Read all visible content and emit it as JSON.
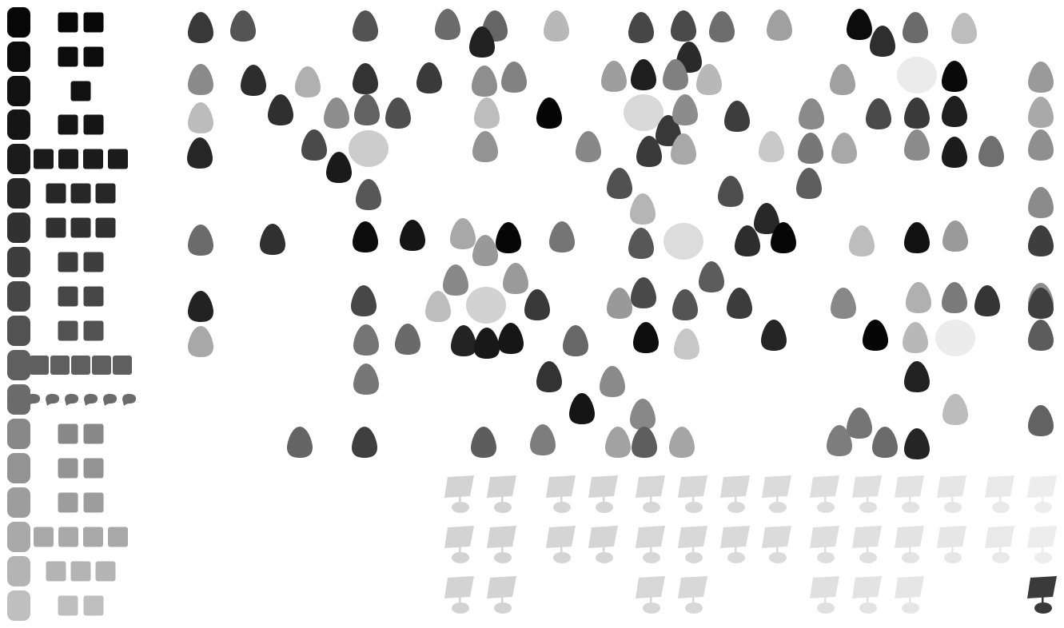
{
  "colors": {
    "background": "#ffffff",
    "panel_inactive": "#d3d3d3"
  },
  "row_controls": [
    {
      "level_color": "#070707",
      "pieces": 2,
      "piece_shape": "square"
    },
    {
      "level_color": "#0c0c0c",
      "pieces": 2,
      "piece_shape": "square"
    },
    {
      "level_color": "#111111",
      "pieces": 1,
      "piece_shape": "square"
    },
    {
      "level_color": "#151515",
      "pieces": 2,
      "piece_shape": "square"
    },
    {
      "level_color": "#1b1b1b",
      "pieces": 4,
      "piece_shape": "square"
    },
    {
      "level_color": "#272727",
      "pieces": 3,
      "piece_shape": "square"
    },
    {
      "level_color": "#313131",
      "pieces": 3,
      "piece_shape": "square"
    },
    {
      "level_color": "#3e3e3e",
      "pieces": 2,
      "piece_shape": "square"
    },
    {
      "level_color": "#474747",
      "pieces": 2,
      "piece_shape": "square"
    },
    {
      "level_color": "#525252",
      "pieces": 2,
      "piece_shape": "square"
    },
    {
      "level_color": "#5f5f5f",
      "pieces": 5,
      "piece_shape": "square"
    },
    {
      "level_color": "#6b6b6b",
      "pieces": 6,
      "piece_shape": "leaf"
    },
    {
      "level_color": "#888888",
      "pieces": 2,
      "piece_shape": "square"
    },
    {
      "level_color": "#939393",
      "pieces": 2,
      "piece_shape": "square"
    },
    {
      "level_color": "#9d9d9d",
      "pieces": 2,
      "piece_shape": "square"
    },
    {
      "level_color": "#a9a9a9",
      "pieces": 4,
      "piece_shape": "square"
    },
    {
      "level_color": "#b4b4b4",
      "pieces": 3,
      "piece_shape": "square"
    },
    {
      "level_color": "#bfbfbf",
      "pieces": 2,
      "piece_shape": "square"
    }
  ],
  "eggs": [
    {
      "c": "#383838"
    },
    {
      "c": "#545454"
    },
    {
      "c": "#535353"
    },
    {
      "c": "#6b6b6b"
    },
    {
      "c": "#666666"
    },
    {
      "c": "#b8b8b8"
    },
    {
      "c": "#464646"
    },
    {
      "c": "#4a4a4a"
    },
    {
      "c": "#6d6d6d"
    },
    {
      "c": "#a0a0a0"
    },
    {
      "c": "#0c0c0c"
    },
    {
      "c": "#6b6b6b"
    },
    {
      "c": "#bdbdbd"
    },
    {
      "c": "#212121"
    },
    {
      "c": "#2e2e2e"
    },
    {
      "c": "#2a2a2a"
    },
    {
      "c": "#8a8a8a"
    },
    {
      "c": "#2d2d2d"
    },
    {
      "c": "#b0b0b0"
    },
    {
      "c": "#333333"
    },
    {
      "c": "#3a3a3a"
    },
    {
      "c": "#8e8e8e"
    },
    {
      "c": "#828282"
    },
    {
      "c": "#9e9e9e"
    },
    {
      "c": "#1e1e1e"
    },
    {
      "c": "#808080"
    },
    {
      "c": "#b8b8b8"
    },
    {
      "c": "#a0a0a0"
    },
    {
      "c": "#090909"
    },
    {
      "c": "#9a9a9a"
    },
    {
      "c": "#bcbcbc"
    },
    {
      "c": "#2f2f2f"
    },
    {
      "c": "#8d8d8d"
    },
    {
      "c": "#626262"
    },
    {
      "c": "#4f4f4f"
    },
    {
      "c": "#bdbdbd"
    },
    {
      "c": "#050505"
    },
    {
      "c": "#383838"
    },
    {
      "c": "#8c8c8c"
    },
    {
      "c": "#3d3d3d"
    },
    {
      "c": "#8a8a8a"
    },
    {
      "c": "#4a4a4a"
    },
    {
      "c": "#3a3a3a"
    },
    {
      "c": "#1f1f1f"
    },
    {
      "c": "#a9a9a9"
    },
    {
      "c": "#262626"
    },
    {
      "c": "#4a4a4a"
    },
    {
      "c": "#1a1a1a"
    },
    {
      "c": "#939393"
    },
    {
      "c": "#878787"
    },
    {
      "c": "#3a3a3a"
    },
    {
      "c": "#a8a8a8"
    },
    {
      "c": "#c9c9c9"
    },
    {
      "c": "#777777"
    },
    {
      "c": "#a8a8a8"
    },
    {
      "c": "#8b8b8b"
    },
    {
      "c": "#1c1c1c"
    },
    {
      "c": "#6f6f6f"
    },
    {
      "c": "#8f8f8f"
    },
    {
      "c": "#575757"
    },
    {
      "c": "#515151"
    },
    {
      "c": "#4e4e4e"
    },
    {
      "c": "#5e5e5e"
    },
    {
      "c": "#8b8b8b"
    },
    {
      "c": "#6b6b6b"
    },
    {
      "c": "#303030"
    },
    {
      "c": "#0c0c0c"
    },
    {
      "c": "#151515"
    },
    {
      "c": "#a8a8a8"
    },
    {
      "c": "#060606"
    },
    {
      "c": "#757575"
    },
    {
      "c": "#575757"
    },
    {
      "c": "#2d2d2d"
    },
    {
      "c": "#282828"
    },
    {
      "c": "#060606"
    },
    {
      "c": "#bdbdbd"
    },
    {
      "c": "#121212"
    },
    {
      "c": "#9a9a9a"
    },
    {
      "c": "#3e3e3e"
    },
    {
      "c": "#999999"
    },
    {
      "c": "#b5b5b5"
    },
    {
      "c": "#5c5c5c"
    },
    {
      "c": "#888888"
    },
    {
      "c": "#9a9a9a"
    },
    {
      "c": "#8e8e8e"
    },
    {
      "c": "#222222"
    },
    {
      "c": "#474747"
    },
    {
      "c": "#bdbdbd"
    },
    {
      "c": "#393939"
    },
    {
      "c": "#999999"
    },
    {
      "c": "#494949"
    },
    {
      "c": "#545454"
    },
    {
      "c": "#3c3c3c"
    },
    {
      "c": "#888888"
    },
    {
      "c": "#b0b0b0"
    },
    {
      "c": "#7a7a7a"
    },
    {
      "c": "#353535"
    },
    {
      "c": "#3f3f3f"
    },
    {
      "c": "#a8a8a8"
    },
    {
      "c": "#757575"
    },
    {
      "c": "#6a6a6a"
    },
    {
      "c": "#232323"
    },
    {
      "c": "#181818"
    },
    {
      "c": "#161616"
    },
    {
      "c": "#676767"
    },
    {
      "c": "#0e0e0e"
    },
    {
      "c": "#c7c7c7"
    },
    {
      "c": "#252525"
    },
    {
      "c": "#050505"
    },
    {
      "c": "#b8b8b8"
    },
    {
      "c": "#5c5c5c"
    },
    {
      "c": "#777777"
    },
    {
      "c": "#333333"
    },
    {
      "c": "#8a8a8a"
    },
    {
      "c": "#222222"
    },
    {
      "c": "#151515"
    },
    {
      "c": "#888888"
    },
    {
      "c": "#bcbcbc"
    },
    {
      "c": "#757575"
    },
    {
      "c": "#626262"
    },
    {
      "c": "#646464"
    },
    {
      "c": "#3f3f3f"
    },
    {
      "c": "#5d5d5d"
    },
    {
      "c": "#7d7d7d"
    },
    {
      "c": "#a2a2a2"
    },
    {
      "c": "#5e5e5e"
    },
    {
      "c": "#a5a5a5"
    },
    {
      "c": "#7d7d7d"
    },
    {
      "c": "#6b6b6b"
    },
    {
      "c": "#252525"
    }
  ],
  "blobs": [
    {
      "c": "#cccccc"
    },
    {
      "c": "#d9d9d9"
    },
    {
      "c": "#dcdcdc"
    },
    {
      "c": "#d2d2d2"
    },
    {
      "c": "#ebebeb"
    },
    {
      "c": "#ececec"
    }
  ],
  "panels": [
    {
      "c": "#d3d3d3"
    },
    {
      "c": "#d3d3d3"
    },
    {
      "c": "#d5d5d5"
    },
    {
      "c": "#d5d5d5"
    },
    {
      "c": "#d7d7d7"
    },
    {
      "c": "#d8d8d8"
    },
    {
      "c": "#d9d9d9"
    },
    {
      "c": "#dbdbdb"
    },
    {
      "c": "#dedede"
    },
    {
      "c": "#e0e0e0"
    },
    {
      "c": "#e3e3e3"
    },
    {
      "c": "#e6e6e6"
    },
    {
      "c": "#e9e9e9"
    },
    {
      "c": "#ededed"
    },
    {
      "c": "#d3d3d3"
    },
    {
      "c": "#d3d3d3"
    },
    {
      "c": "#d5d5d5"
    },
    {
      "c": "#d5d5d5"
    },
    {
      "c": "#d7d7d7"
    },
    {
      "c": "#d8d8d8"
    },
    {
      "c": "#d9d9d9"
    },
    {
      "c": "#dbdbdb"
    },
    {
      "c": "#dedede"
    },
    {
      "c": "#e0e0e0"
    },
    {
      "c": "#e3e3e3"
    },
    {
      "c": "#e6e6e6"
    },
    {
      "c": "#e9e9e9"
    },
    {
      "c": "#ededed"
    },
    {
      "c": "#d3d3d3"
    },
    {
      "c": "#d3d3d3"
    },
    {
      "c": "#d7d7d7"
    },
    {
      "c": "#d8d8d8"
    },
    {
      "c": "#e0e0e0"
    },
    {
      "c": "#e3e3e3"
    },
    {
      "c": "#e6e6e6"
    },
    {
      "c": "#3a3a3a"
    }
  ]
}
